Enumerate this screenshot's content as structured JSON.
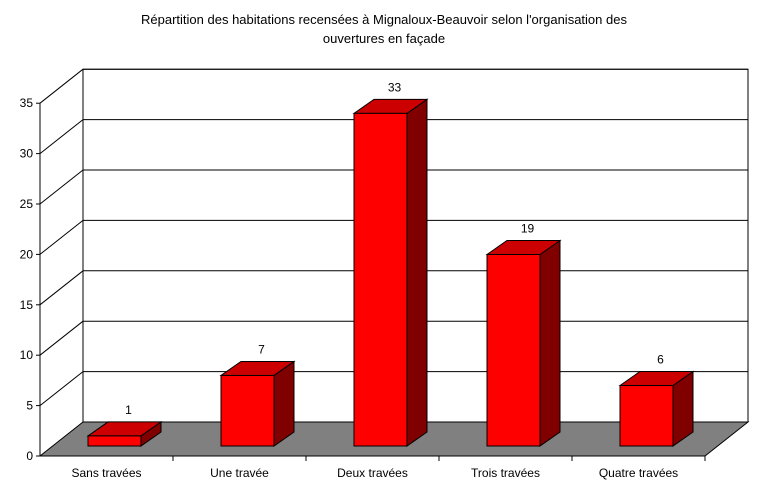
{
  "chart_data": {
    "type": "bar",
    "title_line1": "Répartition des habitations recensées à Mignaloux-Beauvoir selon l'organisation des",
    "title_line2": "ouvertures en façade",
    "categories": [
      "Sans travées",
      "Une travée",
      "Deux travées",
      "Trois travées",
      "Quatre travées"
    ],
    "values": [
      1,
      7,
      33,
      19,
      6
    ],
    "ylim": [
      0,
      35
    ],
    "yticks": [
      0,
      5,
      10,
      15,
      20,
      25,
      30,
      35
    ],
    "grid": true,
    "legend": "none",
    "data_labels": true,
    "three_d": true,
    "colors": {
      "bar_front": "#ff0000",
      "bar_top": "#cc0000",
      "bar_side": "#800000",
      "floor": "#808080",
      "gridline": "#000000"
    }
  }
}
